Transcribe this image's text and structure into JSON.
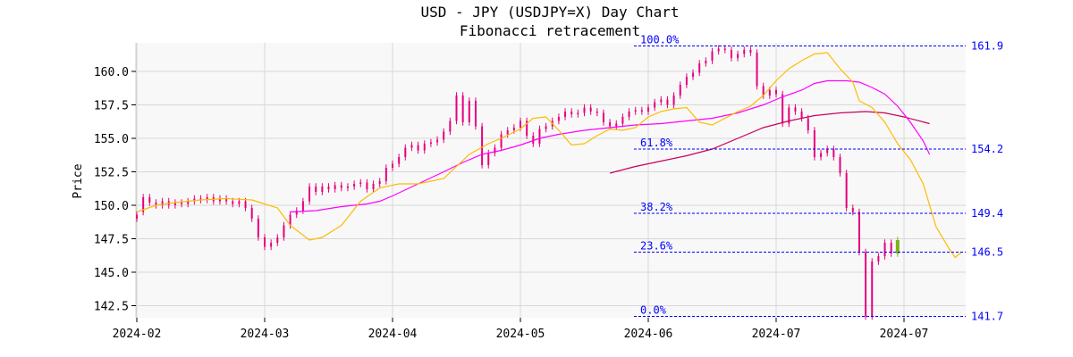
{
  "chart_data": {
    "type": "candlestick",
    "title": "USD - JPY (USDJPY=X) Day Chart",
    "subtitle": "Fibonacci retracement",
    "ylabel": "Price",
    "xlabel": "",
    "ylim": [
      141.5,
      162.2
    ],
    "grid": true,
    "x_ticks": [
      "2024-02",
      "2024-03",
      "2024-04",
      "2024-05",
      "2024-06",
      "2024-07",
      "2024-07"
    ],
    "y_ticks": [
      "142.5",
      "145.0",
      "147.5",
      "150.0",
      "152.5",
      "155.0",
      "157.5",
      "160.0"
    ],
    "y_tick_values": [
      142.5,
      145.0,
      147.5,
      150.0,
      152.5,
      155.0,
      157.5,
      160.0
    ],
    "candles": [
      [
        149.3,
        149.0
      ],
      [
        149.5,
        150.6
      ],
      [
        150.6,
        150.2
      ],
      [
        150.2,
        150.0
      ],
      [
        150.0,
        150.3
      ],
      [
        150.3,
        150.0
      ],
      [
        150.0,
        150.2
      ],
      [
        150.2,
        150.1
      ],
      [
        150.1,
        150.3
      ],
      [
        150.3,
        150.5
      ],
      [
        150.5,
        150.4
      ],
      [
        150.4,
        150.6
      ],
      [
        150.6,
        150.3
      ],
      [
        150.3,
        150.5
      ],
      [
        150.5,
        150.3
      ],
      [
        150.3,
        150.1
      ],
      [
        150.1,
        150.3
      ],
      [
        150.3,
        149.8
      ],
      [
        149.8,
        149.0
      ],
      [
        149.0,
        147.6
      ],
      [
        147.6,
        146.9
      ],
      [
        146.9,
        147.2
      ],
      [
        147.2,
        147.6
      ],
      [
        147.6,
        148.5
      ],
      [
        148.5,
        149.3
      ],
      [
        149.3,
        149.6
      ],
      [
        149.6,
        150.3
      ],
      [
        150.3,
        151.4
      ],
      [
        151.4,
        151.0
      ],
      [
        151.0,
        151.4
      ],
      [
        151.4,
        151.2
      ],
      [
        151.2,
        151.5
      ],
      [
        151.5,
        151.3
      ],
      [
        151.3,
        151.4
      ],
      [
        151.4,
        151.6
      ],
      [
        151.6,
        151.7
      ],
      [
        151.7,
        151.2
      ],
      [
        151.2,
        151.6
      ],
      [
        151.6,
        151.8
      ],
      [
        151.8,
        152.8
      ],
      [
        152.8,
        153.1
      ],
      [
        153.1,
        153.6
      ],
      [
        153.6,
        154.3
      ],
      [
        154.3,
        154.5
      ],
      [
        154.5,
        154.1
      ],
      [
        154.1,
        154.6
      ],
      [
        154.6,
        154.7
      ],
      [
        154.7,
        154.9
      ],
      [
        154.9,
        155.5
      ],
      [
        155.5,
        156.3
      ],
      [
        156.3,
        158.2
      ],
      [
        158.2,
        156.2
      ],
      [
        156.2,
        157.8
      ],
      [
        157.8,
        155.9
      ],
      [
        155.9,
        153.0
      ],
      [
        153.0,
        153.9
      ],
      [
        153.9,
        154.3
      ],
      [
        154.3,
        155.3
      ],
      [
        155.3,
        155.6
      ],
      [
        155.6,
        155.8
      ],
      [
        155.8,
        156.3
      ],
      [
        156.3,
        155.2
      ],
      [
        155.2,
        154.6
      ],
      [
        154.6,
        155.7
      ],
      [
        155.7,
        155.9
      ],
      [
        155.9,
        156.3
      ],
      [
        156.3,
        156.6
      ],
      [
        156.6,
        157.0
      ],
      [
        157.0,
        156.8
      ],
      [
        156.8,
        156.9
      ],
      [
        156.9,
        157.3
      ],
      [
        157.3,
        157.0
      ],
      [
        157.0,
        156.9
      ],
      [
        156.9,
        156.2
      ],
      [
        156.2,
        155.9
      ],
      [
        155.9,
        156.1
      ],
      [
        156.1,
        156.6
      ],
      [
        156.6,
        157.0
      ],
      [
        157.0,
        157.1
      ],
      [
        157.1,
        157.0
      ],
      [
        157.0,
        157.3
      ],
      [
        157.3,
        157.7
      ],
      [
        157.7,
        157.9
      ],
      [
        157.9,
        157.5
      ],
      [
        157.5,
        158.2
      ],
      [
        158.2,
        159.0
      ],
      [
        159.0,
        159.6
      ],
      [
        159.6,
        159.9
      ],
      [
        159.9,
        160.6
      ],
      [
        160.6,
        160.8
      ],
      [
        160.8,
        161.5
      ],
      [
        161.5,
        161.7
      ],
      [
        161.7,
        161.6
      ],
      [
        161.6,
        161.0
      ],
      [
        161.0,
        161.3
      ],
      [
        161.3,
        161.6
      ],
      [
        161.6,
        161.4
      ],
      [
        161.4,
        158.9
      ],
      [
        158.9,
        158.2
      ],
      [
        158.2,
        158.6
      ],
      [
        158.6,
        158.3
      ],
      [
        158.3,
        156.1
      ],
      [
        156.1,
        157.3
      ],
      [
        157.3,
        157.0
      ],
      [
        157.0,
        156.5
      ],
      [
        156.5,
        155.6
      ],
      [
        155.6,
        153.6
      ],
      [
        153.6,
        153.9
      ],
      [
        153.9,
        154.2
      ],
      [
        154.2,
        153.6
      ],
      [
        153.6,
        152.4
      ],
      [
        152.4,
        149.8
      ],
      [
        149.8,
        149.5
      ],
      [
        149.5,
        146.5
      ],
      [
        146.5,
        141.7
      ],
      [
        141.7,
        145.8
      ],
      [
        145.8,
        146.2
      ],
      [
        146.2,
        147.2
      ],
      [
        147.2,
        146.4
      ],
      [
        146.4,
        147.4
      ]
    ],
    "last_candle_up": true,
    "ma_fast": [
      [
        0,
        149.5
      ],
      [
        3,
        150.0
      ],
      [
        6,
        150.2
      ],
      [
        10,
        150.4
      ],
      [
        14,
        150.5
      ],
      [
        18,
        150.4
      ],
      [
        22,
        149.8
      ],
      [
        24,
        148.5
      ],
      [
        27,
        147.4
      ],
      [
        29,
        147.6
      ],
      [
        32,
        148.5
      ],
      [
        35,
        150.3
      ],
      [
        38,
        151.3
      ],
      [
        41,
        151.6
      ],
      [
        44,
        151.6
      ],
      [
        48,
        152.0
      ],
      [
        50,
        152.9
      ],
      [
        52,
        153.8
      ],
      [
        55,
        154.6
      ],
      [
        57,
        155.0
      ],
      [
        60,
        155.7
      ],
      [
        62,
        156.5
      ],
      [
        64,
        156.6
      ],
      [
        66,
        155.6
      ],
      [
        68,
        154.5
      ],
      [
        70,
        154.6
      ],
      [
        72,
        155.2
      ],
      [
        74,
        155.7
      ],
      [
        76,
        155.6
      ],
      [
        78,
        155.8
      ],
      [
        80,
        156.6
      ],
      [
        82,
        157.0
      ],
      [
        84,
        157.2
      ],
      [
        86,
        157.3
      ],
      [
        88,
        156.2
      ],
      [
        90,
        156.0
      ],
      [
        92,
        156.5
      ],
      [
        94,
        157.0
      ],
      [
        96,
        157.4
      ],
      [
        98,
        158.2
      ],
      [
        100,
        159.3
      ],
      [
        102,
        160.2
      ],
      [
        104,
        160.8
      ],
      [
        106,
        161.3
      ],
      [
        108,
        161.4
      ],
      [
        110,
        160.2
      ],
      [
        112,
        159.2
      ],
      [
        113,
        157.8
      ],
      [
        115,
        157.3
      ],
      [
        117,
        156.2
      ],
      [
        119,
        154.6
      ],
      [
        121,
        153.4
      ],
      [
        123,
        151.6
      ],
      [
        125,
        148.4
      ],
      [
        127,
        146.8
      ],
      [
        128,
        146.1
      ],
      [
        129,
        146.5
      ]
    ],
    "ma_mid": [
      [
        24,
        149.5
      ],
      [
        28,
        149.6
      ],
      [
        32,
        149.9
      ],
      [
        36,
        150.1
      ],
      [
        38,
        150.3
      ],
      [
        40,
        150.7
      ],
      [
        44,
        151.6
      ],
      [
        48,
        152.5
      ],
      [
        51,
        153.2
      ],
      [
        54,
        153.8
      ],
      [
        57,
        154.1
      ],
      [
        60,
        154.5
      ],
      [
        63,
        155.0
      ],
      [
        66,
        155.3
      ],
      [
        70,
        155.6
      ],
      [
        74,
        155.8
      ],
      [
        78,
        156.0
      ],
      [
        82,
        156.1
      ],
      [
        86,
        156.3
      ],
      [
        90,
        156.5
      ],
      [
        94,
        156.9
      ],
      [
        98,
        157.5
      ],
      [
        101,
        158.1
      ],
      [
        104,
        158.6
      ],
      [
        106,
        159.1
      ],
      [
        108,
        159.3
      ],
      [
        111,
        159.3
      ],
      [
        113,
        159.2
      ],
      [
        115,
        158.8
      ],
      [
        117,
        158.3
      ],
      [
        119,
        157.4
      ],
      [
        121,
        156.2
      ],
      [
        123,
        154.8
      ],
      [
        124,
        153.8
      ]
    ],
    "ma_slow": [
      [
        74,
        152.4
      ],
      [
        78,
        152.9
      ],
      [
        82,
        153.3
      ],
      [
        86,
        153.7
      ],
      [
        90,
        154.2
      ],
      [
        94,
        155.0
      ],
      [
        98,
        155.8
      ],
      [
        102,
        156.3
      ],
      [
        106,
        156.7
      ],
      [
        110,
        156.9
      ],
      [
        114,
        157.0
      ],
      [
        117,
        156.9
      ],
      [
        120,
        156.6
      ],
      [
        124,
        156.1
      ]
    ],
    "fibonacci": [
      {
        "label": "100.0%",
        "price": 161.9,
        "price_label": "161.9"
      },
      {
        "label": "61.8%",
        "price": 154.2,
        "price_label": "154.2"
      },
      {
        "label": "38.2%",
        "price": 149.4,
        "price_label": "149.4"
      },
      {
        "label": "23.6%",
        "price": 146.5,
        "price_label": "146.5"
      },
      {
        "label": "0.0%",
        "price": 141.7,
        "price_label": "141.7"
      }
    ],
    "colors": {
      "candle": "#e6007e",
      "candle_last": "#7bb31a",
      "ma_fast": "#ffbb00",
      "ma_mid": "#ff00ff",
      "ma_slow": "#c8005a",
      "fib": "#0000ff",
      "plot_bg": "#f8f8f8",
      "grid": "#d8d8d8"
    }
  }
}
